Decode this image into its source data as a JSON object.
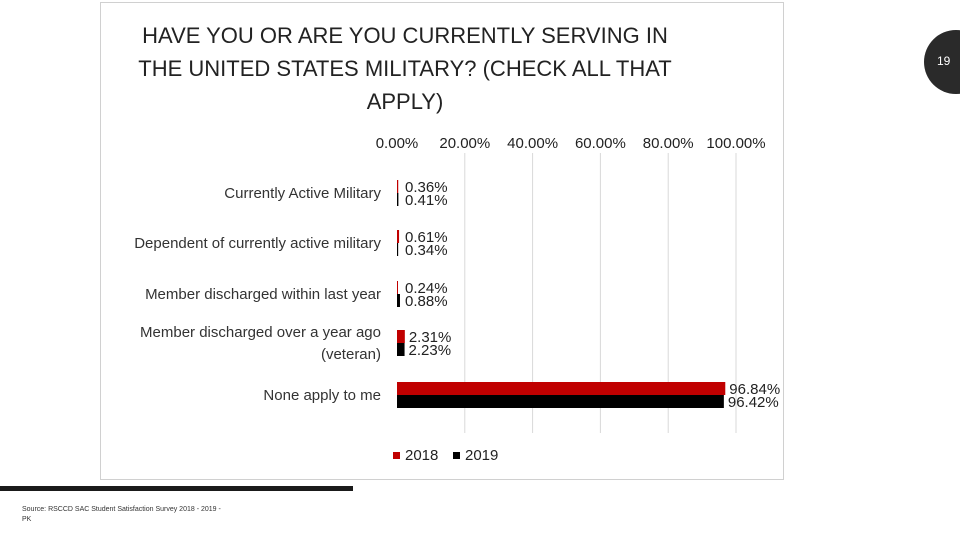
{
  "slide": {
    "page_number": "19",
    "source_note": "Source: RSCCD SAC Student Satisfaction Survey 2018 - 2019 - PK"
  },
  "chart_data": {
    "type": "bar",
    "orientation": "horizontal",
    "title_lines": [
      "HAVE YOU OR ARE YOU CURRENTLY SERVING IN",
      "THE UNITED STATES MILITARY? (CHECK ALL THAT",
      "APPLY)"
    ],
    "categories": [
      [
        "Currently Active Military"
      ],
      [
        "Dependent of currently active military"
      ],
      [
        "Member discharged within last year"
      ],
      [
        "Member discharged over a year ago",
        "(veteran)"
      ],
      [
        "None apply to me"
      ]
    ],
    "series": [
      {
        "name": "2018",
        "color": "#c00000",
        "values": [
          0.36,
          0.61,
          0.24,
          2.31,
          96.84
        ]
      },
      {
        "name": "2019",
        "color": "#000000",
        "values": [
          0.41,
          0.34,
          0.88,
          2.23,
          96.42
        ]
      }
    ],
    "value_labels": {
      "2018": [
        "0.36%",
        "0.61%",
        "0.24%",
        "2.31%",
        "96.84%"
      ],
      "2019": [
        "0.41%",
        "0.34%",
        "0.88%",
        "2.23%",
        "96.42%"
      ]
    },
    "x_ticks": [
      0,
      20,
      40,
      60,
      80,
      100
    ],
    "x_tick_labels": [
      "0.00%",
      "20.00%",
      "40.00%",
      "60.00%",
      "80.00%",
      "100.00%"
    ],
    "xlim": [
      0,
      100
    ],
    "x_axis_position": "top",
    "grid": true,
    "legend_position": "bottom"
  }
}
